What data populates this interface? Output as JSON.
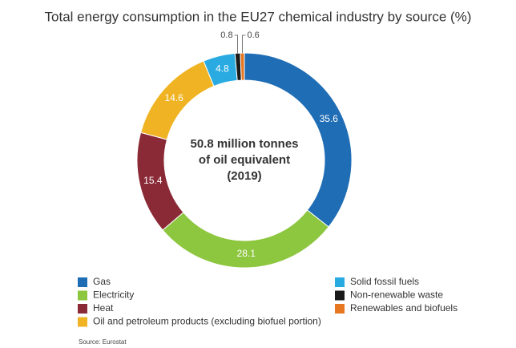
{
  "chart_data": {
    "type": "pie",
    "donut": true,
    "title": "Total energy consumption in the EU27 chemical industry by source (%)",
    "center_text": [
      "50.8 million tonnes",
      "of oil equivalent",
      "(2019)"
    ],
    "categories": [
      "Gas",
      "Electricity",
      "Heat",
      "Oil and petroleum products (excluding biofuel portion)",
      "Solid fossil fuels",
      "Non-renewable waste",
      "Renewables and biofuels"
    ],
    "values": [
      35.6,
      28.1,
      15.4,
      14.6,
      4.8,
      0.8,
      0.6
    ],
    "colors": [
      "#1f6db5",
      "#8dc63f",
      "#8a2a36",
      "#f0b323",
      "#29abe2",
      "#1a1a1a",
      "#e87722"
    ],
    "source": "Source: Eurostat"
  }
}
